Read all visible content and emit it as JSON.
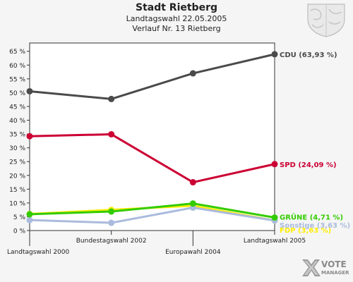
{
  "header": {
    "title": "Stadt Rietberg",
    "subtitle1": "Landtagswahl 22.05.2005",
    "subtitle2": "Verlauf Nr. 13 Rietberg"
  },
  "logo": {
    "top": "VOTE",
    "bottom": "MANAGER",
    "icon": "vote-manager-x-icon"
  },
  "crest": {
    "icon": "coat-of-arms-icon"
  },
  "chart_data": {
    "type": "line",
    "title": "Stadt Rietberg",
    "subtitle": "Landtagswahl 22.05.2005 — Verlauf Nr. 13 Rietberg",
    "categories": [
      "Landtagswahl 2000",
      "Bundestagswahl 2002",
      "Europawahl 2004",
      "Landtagswahl 2005"
    ],
    "ylim": [
      0,
      68
    ],
    "yticks": [
      0,
      5,
      10,
      15,
      20,
      25,
      30,
      35,
      40,
      45,
      50,
      55,
      60,
      65
    ],
    "ytick_labels": [
      "0 %",
      "5 %",
      "10 %",
      "15 %",
      "20 %",
      "25 %",
      "30 %",
      "35 %",
      "40 %",
      "45 %",
      "50 %",
      "55 %",
      "60 %",
      "65 %"
    ],
    "grid": false,
    "series": [
      {
        "name": "CDU",
        "label": "CDU (63,93 %)",
        "color": "#4a4a4a",
        "values": [
          50.5,
          47.7,
          57.0,
          63.93
        ]
      },
      {
        "name": "SPD",
        "label": "SPD (24,09 %)",
        "color": "#cc0033",
        "values": [
          34.2,
          34.9,
          17.5,
          24.09
        ]
      },
      {
        "name": "FDP",
        "label": "FDP (3,63 %)",
        "color": "#ffee00",
        "values": [
          6.0,
          7.5,
          9.0,
          3.63
        ]
      },
      {
        "name": "Sonstige",
        "label": "Sonstige (3,63 %)",
        "color": "#aabbdd",
        "values": [
          3.8,
          2.8,
          8.3,
          3.63
        ]
      },
      {
        "name": "GRÜNE",
        "label": "GRÜNE (4,71 %)",
        "color": "#33cc00",
        "values": [
          5.9,
          6.9,
          9.8,
          4.71
        ]
      }
    ]
  }
}
